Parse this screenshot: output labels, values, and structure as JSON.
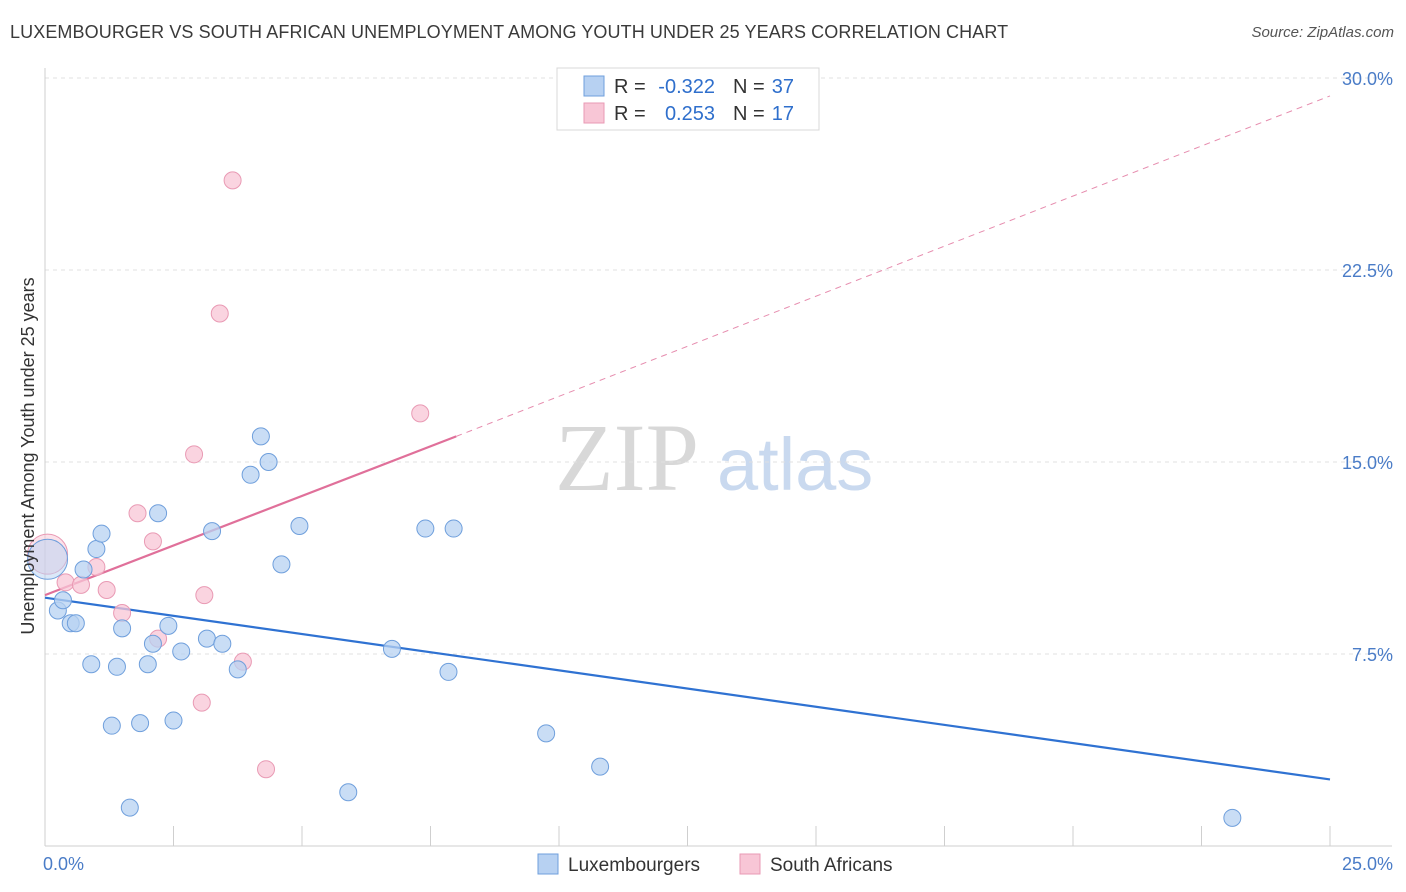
{
  "title": "LUXEMBOURGER VS SOUTH AFRICAN UNEMPLOYMENT AMONG YOUTH UNDER 25 YEARS CORRELATION CHART",
  "source": "Source: ZipAtlas.com",
  "watermark": {
    "part1": "ZIP",
    "part2": "atlas"
  },
  "colors": {
    "blue_fill": "#b7d1f2",
    "blue_stroke": "#6f9fdc",
    "blue_line": "#2f72d2",
    "pink_fill": "#f8c6d6",
    "pink_stroke": "#e99ab4",
    "pink_line": "#e0709a",
    "grid": "#e0e0e0",
    "axis_label": "#4a7cc7"
  },
  "chart_data": {
    "type": "scatter",
    "xlabel": "",
    "ylabel": "Unemployment Among Youth under 25 years",
    "xlim": [
      0,
      25
    ],
    "ylim": [
      0,
      30
    ],
    "x_tick_labels": [
      "0.0%",
      "25.0%"
    ],
    "y_ticks": [
      7.5,
      15.0,
      22.5,
      30.0
    ],
    "y_tick_labels": [
      "7.5%",
      "15.0%",
      "22.5%",
      "30.0%"
    ],
    "grid": "horizontal dashed",
    "legend": {
      "position": "top-center",
      "rows": [
        {
          "r_label": "R =",
          "r_value": "-0.322",
          "n_label": "N =",
          "n_value": "37"
        },
        {
          "r_label": "R =",
          "r_value": "0.253",
          "n_label": "N =",
          "n_value": "17"
        }
      ]
    },
    "series": [
      {
        "name": "Luxembourgers",
        "color": "blue",
        "points": [
          [
            0.05,
            11.2
          ],
          [
            0.25,
            9.2
          ],
          [
            0.35,
            9.6
          ],
          [
            0.5,
            8.7
          ],
          [
            0.6,
            8.7
          ],
          [
            0.75,
            10.8
          ],
          [
            0.9,
            7.1
          ],
          [
            1.0,
            11.6
          ],
          [
            1.1,
            12.2
          ],
          [
            1.3,
            4.7
          ],
          [
            1.4,
            7.0
          ],
          [
            1.5,
            8.5
          ],
          [
            1.65,
            1.5
          ],
          [
            1.85,
            4.8
          ],
          [
            2.0,
            7.1
          ],
          [
            2.1,
            7.9
          ],
          [
            2.2,
            13.0
          ],
          [
            2.4,
            8.6
          ],
          [
            2.5,
            4.9
          ],
          [
            2.65,
            7.6
          ],
          [
            3.15,
            8.1
          ],
          [
            3.25,
            12.3
          ],
          [
            3.45,
            7.9
          ],
          [
            3.75,
            6.9
          ],
          [
            4.0,
            14.5
          ],
          [
            4.2,
            16.0
          ],
          [
            4.35,
            15.0
          ],
          [
            4.6,
            11.0
          ],
          [
            4.95,
            12.5
          ],
          [
            5.9,
            2.1
          ],
          [
            6.75,
            7.7
          ],
          [
            7.4,
            12.4
          ],
          [
            7.85,
            6.8
          ],
          [
            7.95,
            12.4
          ],
          [
            9.75,
            4.4
          ],
          [
            10.8,
            3.1
          ],
          [
            23.1,
            1.1
          ]
        ],
        "sizes_large": [
          [
            0.05,
            11.2
          ]
        ],
        "trend": {
          "x": [
            0,
            25
          ],
          "y": [
            9.7,
            2.6
          ],
          "style": "solid"
        }
      },
      {
        "name": "South Africans",
        "color": "pink",
        "points": [
          [
            0.05,
            11.4
          ],
          [
            0.4,
            10.3
          ],
          [
            0.7,
            10.2
          ],
          [
            1.0,
            10.9
          ],
          [
            1.2,
            10.0
          ],
          [
            1.5,
            9.1
          ],
          [
            1.8,
            13.0
          ],
          [
            2.1,
            11.9
          ],
          [
            2.2,
            8.1
          ],
          [
            2.9,
            15.3
          ],
          [
            3.05,
            5.6
          ],
          [
            3.1,
            9.8
          ],
          [
            3.4,
            20.8
          ],
          [
            3.65,
            26.0
          ],
          [
            3.85,
            7.2
          ],
          [
            4.3,
            3.0
          ],
          [
            7.3,
            16.9
          ]
        ],
        "sizes_large": [
          [
            0.05,
            11.4
          ]
        ],
        "trend": {
          "x": [
            0,
            8.0
          ],
          "y": [
            9.8,
            16.0
          ],
          "style": "solid",
          "extension": {
            "x": [
              8.0,
              25
            ],
            "y": [
              16.0,
              29.3
            ],
            "style": "dashed"
          }
        }
      }
    ]
  }
}
